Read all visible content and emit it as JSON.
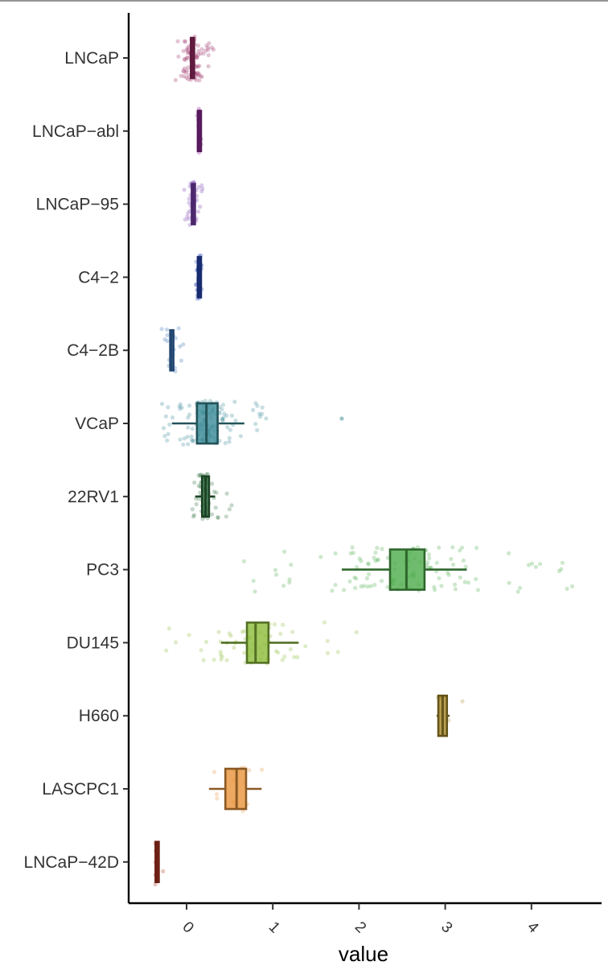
{
  "chart_data": {
    "type": "boxplot",
    "orientation": "horizontal",
    "xlabel": "value",
    "xlim": [
      -0.65,
      4.85
    ],
    "xticks": [
      0,
      1,
      2,
      3,
      4
    ],
    "xtick_labels": [
      "0",
      "1",
      "2",
      "3",
      "4"
    ],
    "categories": [
      "LNCaP",
      "LNCaP-abl",
      "LNCaP-95",
      "C4-2",
      "C4-2B",
      "VCaP",
      "22RV1",
      "PC3",
      "DU145",
      "H660",
      "LASCPC1",
      "LNCaP-42D"
    ],
    "category_labels": [
      "LNCaP",
      "LNCaP−abl",
      "LNCaP−95",
      "C4−2",
      "C4−2B",
      "VCaP",
      "22RV1",
      "PC3",
      "DU145",
      "H660",
      "LASCPC1",
      "LNCaP−42D"
    ],
    "series": [
      {
        "category": "LNCaP",
        "color": "#9c2a66",
        "whisker_low": 0.04,
        "q1": 0.05,
        "median": 0.06,
        "q3": 0.08,
        "whisker_high": 0.09,
        "points_range": [
          -0.15,
          0.35
        ],
        "n_points": 90,
        "outliers": []
      },
      {
        "category": "LNCaP-abl",
        "color": "#8e2a94",
        "whisker_low": 0.13,
        "q1": 0.13,
        "median": 0.14,
        "q3": 0.15,
        "whisker_high": 0.16,
        "points_range": [
          0.12,
          0.17
        ],
        "n_points": 20,
        "outliers": []
      },
      {
        "category": "LNCaP-95",
        "color": "#7b3fb4",
        "whisker_low": 0.05,
        "q1": 0.06,
        "median": 0.07,
        "q3": 0.09,
        "whisker_high": 0.1,
        "points_range": [
          -0.05,
          0.2
        ],
        "n_points": 40,
        "outliers": []
      },
      {
        "category": "C4-2",
        "color": "#2746b8",
        "whisker_low": 0.12,
        "q1": 0.13,
        "median": 0.14,
        "q3": 0.15,
        "whisker_high": 0.16,
        "points_range": [
          0.1,
          0.18
        ],
        "n_points": 50,
        "outliers": []
      },
      {
        "category": "C4-2B",
        "color": "#3b74b8",
        "whisker_low": -0.2,
        "q1": -0.19,
        "median": -0.18,
        "q3": -0.16,
        "whisker_high": -0.15,
        "points_range": [
          -0.4,
          0.1
        ],
        "n_points": 18,
        "outliers": []
      },
      {
        "category": "VCaP",
        "color": "#3a8a96",
        "whisker_low": -0.17,
        "q1": 0.12,
        "median": 0.23,
        "q3": 0.36,
        "whisker_high": 0.67,
        "points_range": [
          -0.3,
          0.95
        ],
        "n_points": 130,
        "outliers": [
          1.8
        ]
      },
      {
        "category": "22RV1",
        "color": "#2e6e3e",
        "whisker_low": 0.1,
        "q1": 0.18,
        "median": 0.22,
        "q3": 0.26,
        "whisker_high": 0.33,
        "points_range": [
          0.05,
          0.55
        ],
        "n_points": 60,
        "outliers": []
      },
      {
        "category": "PC3",
        "color": "#4cab4a",
        "whisker_low": 1.8,
        "q1": 2.36,
        "median": 2.55,
        "q3": 2.76,
        "whisker_high": 3.25,
        "points_range": [
          0.6,
          4.55
        ],
        "n_points": 120,
        "outliers": []
      },
      {
        "category": "DU145",
        "color": "#8cbc3a",
        "whisker_low": 0.4,
        "q1": 0.7,
        "median": 0.8,
        "q3": 0.95,
        "whisker_high": 1.3,
        "points_range": [
          -0.3,
          2.0
        ],
        "n_points": 70,
        "outliers": []
      },
      {
        "category": "H660",
        "color": "#a88a2a",
        "whisker_low": 2.9,
        "q1": 2.92,
        "median": 2.97,
        "q3": 3.02,
        "whisker_high": 3.05,
        "points_range": [
          2.9,
          3.45
        ],
        "n_points": 8,
        "outliers": []
      },
      {
        "category": "LASCPC1",
        "color": "#e8943a",
        "whisker_low": 0.26,
        "q1": 0.45,
        "median": 0.58,
        "q3": 0.69,
        "whisker_high": 0.87,
        "points_range": [
          0.25,
          0.9
        ],
        "n_points": 14,
        "outliers": []
      },
      {
        "category": "LNCaP-42D",
        "color": "#b1331f",
        "whisker_low": -0.36,
        "q1": -0.36,
        "median": -0.35,
        "q3": -0.34,
        "whisker_high": -0.34,
        "points_range": [
          -0.4,
          -0.2
        ],
        "n_points": 6,
        "outliers": []
      }
    ]
  }
}
